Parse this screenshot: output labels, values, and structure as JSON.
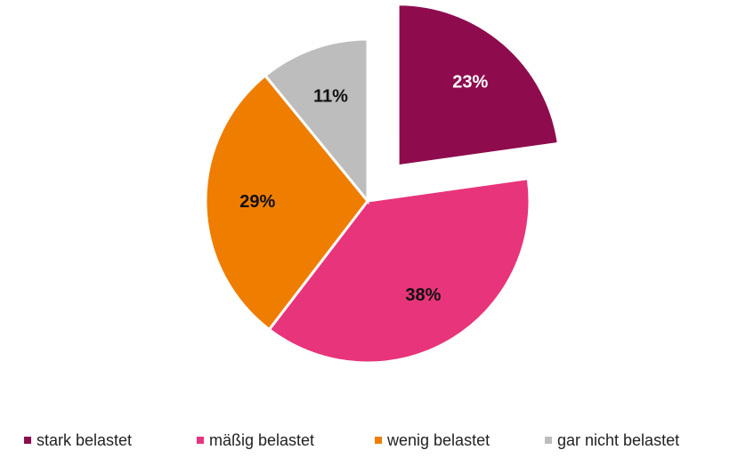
{
  "chart_data": {
    "type": "pie",
    "categories": [
      "stark belastet",
      "mäßig belastet",
      "wenig belastet",
      "gar nicht belastet"
    ],
    "values": [
      23,
      38,
      29,
      11
    ],
    "value_labels": [
      "23%",
      "38%",
      "29%",
      "11%"
    ],
    "colors": [
      "#8e0c4e",
      "#e8347a",
      "#ef7d00",
      "#bdbdbd"
    ],
    "label_colors": [
      "#ffffff",
      "#111111",
      "#111111",
      "#111111"
    ],
    "legend": "bottom"
  }
}
